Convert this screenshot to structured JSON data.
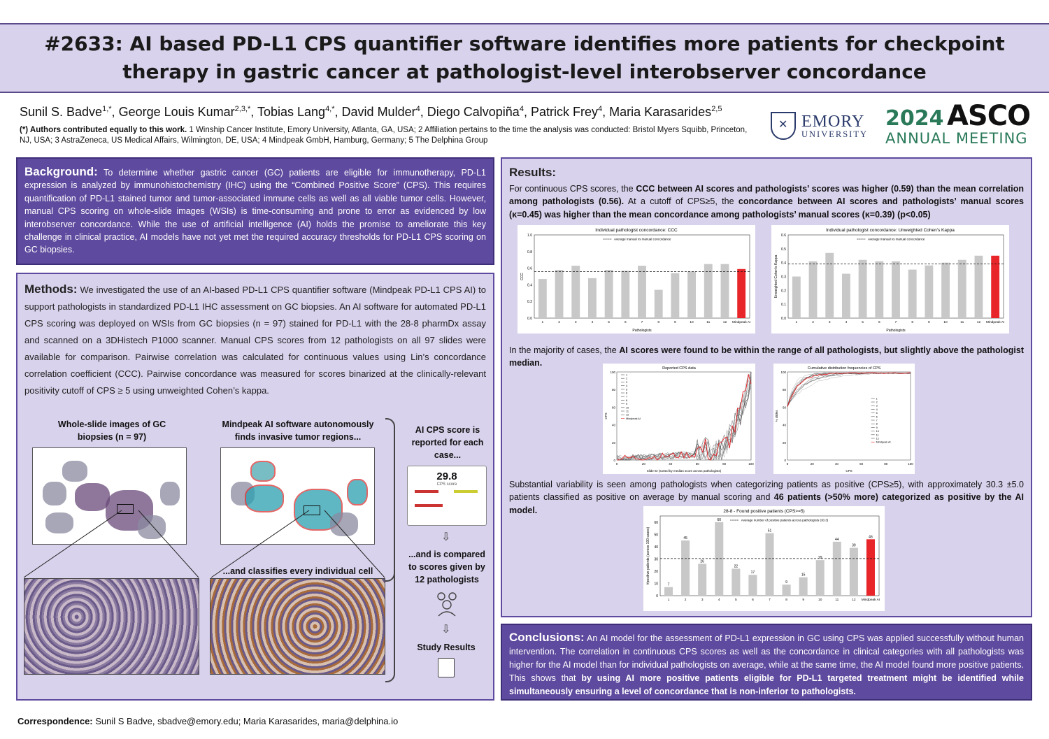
{
  "header": {
    "title": "#2633: AI based PD-L1 CPS quantifier software identifies more patients for checkpoint therapy in gastric cancer at pathologist-level interobserver concordance"
  },
  "authors": {
    "names": [
      {
        "name": "Sunil S. Badve",
        "sup": "1,*"
      },
      {
        "name": "George Louis Kumar",
        "sup": "2,3,*"
      },
      {
        "name": "Tobias Lang",
        "sup": "4,*"
      },
      {
        "name": "David Mulder",
        "sup": "4"
      },
      {
        "name": "Diego Calvopiña",
        "sup": "4"
      },
      {
        "name": "Patrick Frey",
        "sup": "4"
      },
      {
        "name": "Maria Karasarides",
        "sup": "2,5"
      }
    ],
    "equal_contrib": "(*) Authors contributed equally to this work.",
    "affiliations": " 1 Winship Cancer Institute, Emory University, Atlanta, GA, USA;  2 Affiliation pertains to the time the analysis was conducted: Bristol Myers Squibb, Princeton, NJ, USA;  3 AstraZeneca, US Medical Affairs, Wilmington, DE, USA;  4  Mindpeak GmbH, Hamburg, Germany;  5 The Delphina Group"
  },
  "logos": {
    "emory_line1": "EMORY",
    "emory_line2": "UNIVERSITY",
    "asco_year": "2024",
    "asco_brand": "ASCO",
    "asco_meeting": "ANNUAL MEETING"
  },
  "background": {
    "heading": "Background:",
    "text": "To determine whether gastric cancer (GC) patients are eligible for immunotherapy, PD-L1 expression is analyzed by immunohistochemistry (IHC) using the “Combined Positive Score” (CPS). This requires quantification of PD-L1 stained tumor and tumor-associated immune cells as well as all viable tumor cells. However, manual CPS scoring on whole-slide images (WSIs) is time-consuming and prone to error as evidenced by low interobserver concordance. While the use of artificial intelligence (AI) holds the promise to ameliorate this key challenge in clinical practice, AI models have not yet met the required accuracy thresholds for PD-L1 CPS scoring on GC biopsies."
  },
  "methods": {
    "heading": "Methods:",
    "text": "We investigated the use of an AI-based PD-L1 CPS quantifier software (Mindpeak PD-L1 CPS AI) to support pathologists in standardized PD-L1 IHC assessment on GC biopsies. An AI software for automated PD-L1 CPS scoring was deployed on WSIs from GC biopsies (n = 97) stained for PD-L1 with the 28-8 pharmDx assay and scanned on a 3DHistech P1000 scanner. Manual CPS scores from 12 pathologists on all 97 slides were available for comparison. Pairwise correlation was calculated for continuous values using Lin’s concordance correlation coefficient (CCC). Pairwise concordance was measured for scores binarized at the clinically-relevant positivity cutoff of CPS ≥ 5 using unweighted Cohen’s kappa.",
    "fig": {
      "cap_wsi": "Whole-slide images of GC biopsies (n = 97)",
      "cap_ai": "Mindpeak AI software autonomously finds invasive tumor regions...",
      "cap_cells": "...and classifies every individual cell",
      "cap_score": "AI CPS score is reported for each case...",
      "cps_value": "29.8",
      "cps_label": "CPS score",
      "cap_compare": "...and is compared to scores given by 12 pathologists",
      "cap_results": "Study Results"
    }
  },
  "results": {
    "heading": "Results:",
    "p1_a": "For continuous CPS scores, the ",
    "p1_b": "CCC between AI scores and pathologists’ scores was higher (0.59) than the mean correlation among pathologists (0.56).",
    "p1_c": " At a cutoff of CPS≥5, the ",
    "p1_d": "concordance between AI scores and pathologists’ manual scores (κ=0.45) was higher than the mean concordance among pathologists’ manual scores (κ=0.39) (p<0.05)",
    "p2_a": "In the majority of cases, the ",
    "p2_b": "AI scores were found to be within the range of all pathologists, but slightly above the pathologist median.",
    "p3_a": "Substantial variability is seen among pathologists when categorizing patients as positive (CPS≥5), with approximately 30.3 ±5.0 patients classified as positive on average by manual scoring and ",
    "p3_b": "46 patients (>50% more) categorized as positive by the AI model."
  },
  "conclusions": {
    "heading": "Conclusions:",
    "text_a": "An AI model for the assessment of PD-L1 expression in GC using CPS was applied successfully without human intervention. The correlation in continuous CPS scores as well as the concordance in clinical categories with all pathologists was higher for the AI model than for individual pathologists on average, while at the same time, the AI model found more positive patients. This shows that ",
    "text_b": "by using AI more positive patients eligible for PD-L1 targeted treatment might be identified while simultaneously ensuring a level of concordance that is non-inferior to pathologists."
  },
  "correspondence": {
    "label": "Correspondence:",
    "text": " Sunil S Badve, sbadve@emory.edu; Maria Karasarides, maria@delphina.io"
  },
  "colors": {
    "ai_bar": "#e8262a",
    "path_bar": "#c8c8c8",
    "panel_dark": "#5e4a9e",
    "panel_light": "#d9d2ec"
  },
  "chart_data": [
    {
      "type": "bar",
      "title": "Individual pathologist concordance: CCC",
      "xlabel": "Pathologists",
      "ylabel": "CCC",
      "legend": "Average manual vs manual concordance",
      "categories": [
        "1",
        "2",
        "3",
        "4",
        "5",
        "6",
        "7",
        "8",
        "9",
        "10",
        "11",
        "12",
        "Mindpeak AI"
      ],
      "values": [
        0.47,
        0.58,
        0.63,
        0.48,
        0.58,
        0.57,
        0.63,
        0.34,
        0.54,
        0.56,
        0.65,
        0.65,
        0.59
      ],
      "reference": 0.56,
      "ylim": [
        0,
        1.0
      ],
      "yticks": [
        "0.0",
        "0.2",
        "0.4",
        "0.6",
        "0.8",
        "1.0"
      ]
    },
    {
      "type": "bar",
      "title": "Individual pathologist concordance: Unweighted Cohen's Kappa",
      "xlabel": "Pathologists",
      "ylabel": "Unweighted Cohen's Kappa",
      "legend": "Average manual vs manual concordance",
      "categories": [
        "1",
        "2",
        "3",
        "4",
        "5",
        "6",
        "7",
        "8",
        "9",
        "10",
        "11",
        "12",
        "Mindpeak AI"
      ],
      "values": [
        0.3,
        0.41,
        0.47,
        0.32,
        0.42,
        0.41,
        0.41,
        0.35,
        0.38,
        0.4,
        0.42,
        0.45,
        0.45
      ],
      "reference": 0.39,
      "ylim": [
        0,
        0.6
      ],
      "yticks": [
        "0.0",
        "0.1",
        "0.2",
        "0.3",
        "0.4",
        "0.5",
        "0.6"
      ]
    },
    {
      "type": "line",
      "title": "Reported CPS data",
      "xlabel": "Slide ID (sorted by median score across pathologists)",
      "ylabel": "CPS",
      "legend_entries": [
        "1",
        "2",
        "3",
        "4",
        "5",
        "6",
        "7",
        "8",
        "9",
        "10",
        "11",
        "12",
        "Mindpeak AI"
      ],
      "xlim": [
        0,
        100
      ],
      "ylim": [
        0,
        100
      ],
      "xticks": [
        "0",
        "20",
        "40",
        "60",
        "80",
        "100"
      ],
      "yticks": [
        "0",
        "20",
        "40",
        "60",
        "80",
        "100"
      ]
    },
    {
      "type": "line",
      "title": "Cumulative distribution frequencies of CPS",
      "xlabel": "CPS",
      "ylabel": "% slides",
      "legend_entries": [
        "1",
        "2",
        "3",
        "4",
        "5",
        "6",
        "7",
        "8",
        "9",
        "10",
        "11",
        "12",
        "Mindpeak AI"
      ],
      "xlim": [
        0,
        100
      ],
      "ylim": [
        0,
        100
      ],
      "xticks": [
        "0",
        "20",
        "40",
        "60",
        "80",
        "100"
      ],
      "yticks": [
        "0",
        "20",
        "40",
        "60",
        "80",
        "100"
      ]
    },
    {
      "type": "bar",
      "title": "28-8 - Found positive patients (CPS>=5)",
      "ylabel": "#positive patients (across 100 cases)",
      "legend": "Average number of positive patients across pathologists (30.3)",
      "categories": [
        "1",
        "2",
        "3",
        "4",
        "5",
        "6",
        "7",
        "8",
        "9",
        "10",
        "11",
        "12",
        "Mindpeak AI"
      ],
      "values": [
        7,
        45,
        26,
        60,
        22,
        17,
        51,
        9,
        15,
        29,
        44,
        39,
        46
      ],
      "reference": 30.3,
      "ylim": [
        0,
        65
      ],
      "yticks": [
        "0",
        "10",
        "20",
        "30",
        "40",
        "50",
        "60"
      ]
    }
  ]
}
